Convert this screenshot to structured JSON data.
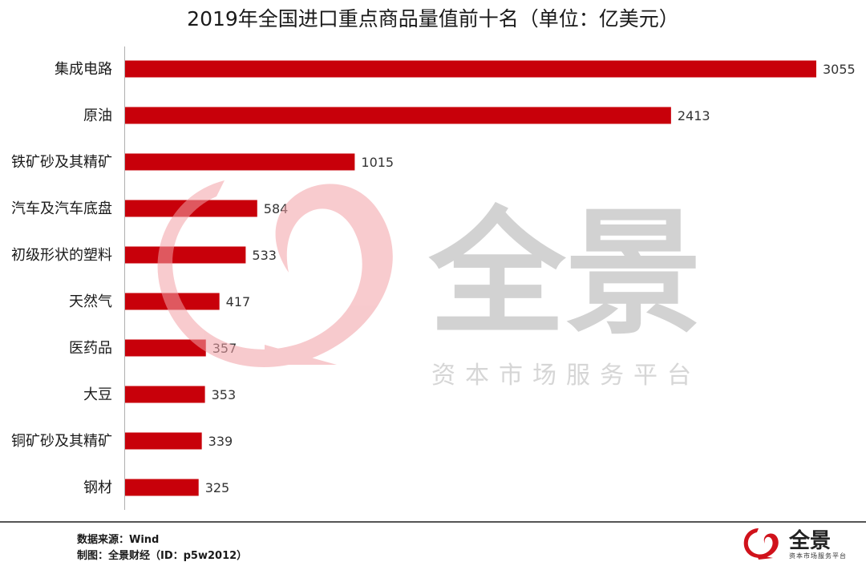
{
  "title": "2019年全国进口重点商品量值前十名（单位：亿美元）",
  "colors": {
    "bar": "#c8000a",
    "watermark_swirl": "#f2a0a6",
    "watermark_text": "#d2d2d2",
    "brand_red": "#d0121b"
  },
  "chart_data": {
    "type": "bar",
    "orientation": "horizontal",
    "categories": [
      "集成电路",
      "原油",
      "铁矿砂及其精矿",
      "汽车及汽车底盘",
      "初级形状的塑料",
      "天然气",
      "医药品",
      "大豆",
      "铜矿砂及其精矿",
      "钢材"
    ],
    "values": [
      3055,
      2413,
      1015,
      584,
      533,
      417,
      357,
      353,
      339,
      325
    ],
    "title": "2019年全国进口重点商品量值前十名（单位：亿美元）",
    "xlabel": "",
    "ylabel": "",
    "xlim": [
      0,
      3055
    ],
    "grid": false,
    "legend": "none"
  },
  "watermark": {
    "brand": "全景",
    "tagline": "资本市场服务平台"
  },
  "footer": {
    "source": "数据来源：Wind",
    "maker": "制图：全景财经（ID：p5w2012）"
  },
  "logo": {
    "icon": "quanjing-logo-icon",
    "name": "全景",
    "tagline": "资本市场服务平台"
  }
}
